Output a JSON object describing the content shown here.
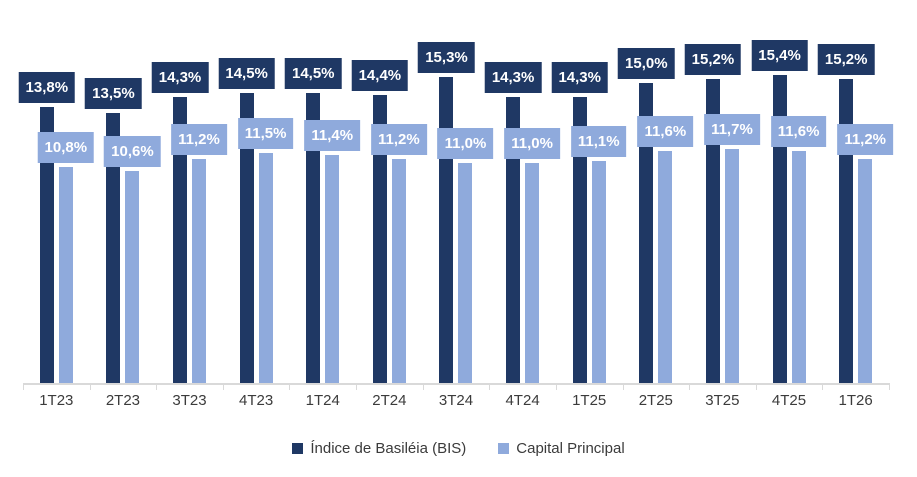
{
  "chart_data": {
    "type": "bar",
    "title": "",
    "xlabel": "",
    "ylabel": "",
    "ylim": [
      0,
      16
    ],
    "grid": false,
    "legend_position": "bottom",
    "value_label_style": "boxed labels above bars, white bold text on series-colored background, Brazilian decimal comma format",
    "categories": [
      "1T23",
      "2T23",
      "3T23",
      "4T23",
      "1T24",
      "2T24",
      "3T24",
      "4T24",
      "1T25",
      "2T25",
      "3T25",
      "4T25",
      "1T26"
    ],
    "series": [
      {
        "name": "Índice de Basiléia (BIS)",
        "color": "#1F3864",
        "values": [
          13.8,
          13.5,
          14.3,
          14.5,
          14.5,
          14.4,
          15.3,
          14.3,
          14.3,
          15.0,
          15.2,
          15.4,
          15.2
        ],
        "labels": [
          "13,8%",
          "13,5%",
          "14,3%",
          "14,5%",
          "14,5%",
          "14,4%",
          "15,3%",
          "14,3%",
          "14,3%",
          "15,0%",
          "15,2%",
          "15,4%",
          "15,2%"
        ]
      },
      {
        "name": "Capital Principal",
        "color": "#8FAADC",
        "values": [
          10.8,
          10.6,
          11.2,
          11.5,
          11.4,
          11.2,
          11.0,
          11.0,
          11.1,
          11.6,
          11.7,
          11.6,
          11.2
        ],
        "labels": [
          "10,8%",
          "10,6%",
          "11,2%",
          "11,5%",
          "11,4%",
          "11,2%",
          "11,0%",
          "11,0%",
          "11,1%",
          "11,6%",
          "11,7%",
          "11,6%",
          "11,2%"
        ]
      }
    ],
    "axis_color": "#D9D9D9",
    "tick_label_color": "#3B3B3B"
  }
}
